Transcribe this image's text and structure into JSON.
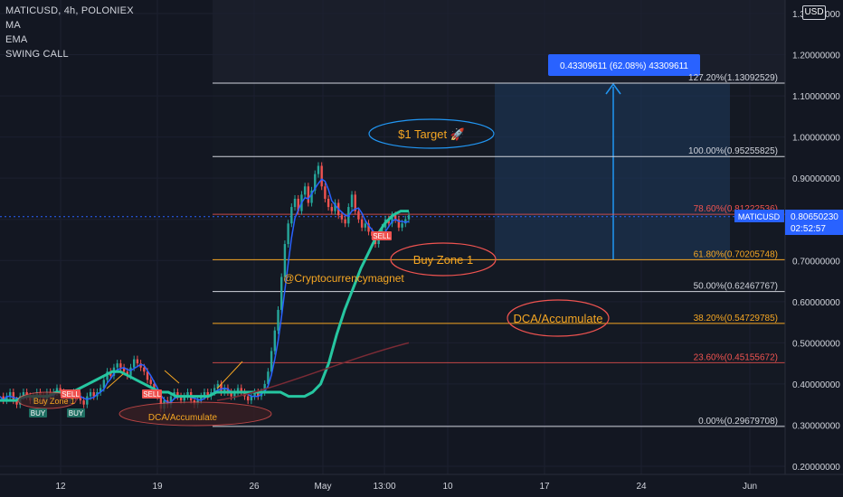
{
  "header": {
    "symbol_line": "MATICUSD, 4h, POLONIEX",
    "indicators": [
      "MA",
      "EMA",
      "SWING CALL"
    ],
    "currency_badge": "USD"
  },
  "colors": {
    "background": "#131722",
    "grid": "#1c2030",
    "axis_text": "#d1d4dc",
    "up_candle": "#26a69a",
    "down_candle": "#ef5350",
    "ma_line": "#26c6a0",
    "ema_line": "#2962ff",
    "fib_white": "#d1d4dc",
    "fib_orange": "#f5a623",
    "fib_red": "#ef5350",
    "target_box": "#1e3a5f",
    "target_arrow": "#2196f3",
    "ellipse_red": "#ef5350",
    "ellipse_blue": "#2196f3",
    "price_label_bg": "#2962ff"
  },
  "chart_data": {
    "type": "line",
    "title": "MATICUSD, 4h, POLONIEX",
    "x_ticks": [
      "12",
      "19",
      "26",
      "May",
      "13:00",
      "10",
      "17",
      "24",
      "Jun"
    ],
    "y_ticks": [
      "1.30000000",
      "1.20000000",
      "1.10000000",
      "1.00000000",
      "0.90000000",
      "0.80000000",
      "0.70000000",
      "0.60000000",
      "0.50000000",
      "0.40000000",
      "0.30000000",
      "0.20000000"
    ],
    "y_tick_values": [
      1.3,
      1.2,
      1.1,
      1.0,
      0.9,
      0.8,
      0.7,
      0.6,
      0.5,
      0.4,
      0.3,
      0.2
    ],
    "ylim": [
      0.18,
      1.32
    ],
    "last_price": {
      "symbol": "MATICUSD",
      "value": "0.80650230",
      "countdown": "02:52:57"
    },
    "fib_levels": [
      {
        "label": "127.20%(1.13092529)",
        "value": 1.13092529,
        "color": "white"
      },
      {
        "label": "100.00%(0.95255825)",
        "value": 0.95255825,
        "color": "white"
      },
      {
        "label": "78.60%(0.81222536)",
        "value": 0.81222536,
        "color": "red"
      },
      {
        "label": "61.80%(0.70205748)",
        "value": 0.70205748,
        "color": "orange"
      },
      {
        "label": "50.00%(0.62467767)",
        "value": 0.62467767,
        "color": "white"
      },
      {
        "label": "38.20%(0.54729785)",
        "value": 0.54729785,
        "color": "orange"
      },
      {
        "label": "23.60%(0.45155672)",
        "value": 0.45155672,
        "color": "red"
      },
      {
        "label": "0.00%(0.29679708)",
        "value": 0.29679708,
        "color": "white"
      }
    ],
    "measure_label": "0.43309611 (62.08%) 43309611",
    "annotations": [
      "$1 Target 🚀",
      "Buy Zone 1",
      "DCA/Accumulate",
      "@Cryptocurrencymagnet"
    ],
    "signals": [
      "SELL",
      "BUY",
      "Buy Zone 1",
      "DCA/Accumulate"
    ],
    "price_series": [
      0.37,
      0.36,
      0.37,
      0.38,
      0.36,
      0.35,
      0.37,
      0.38,
      0.37,
      0.36,
      0.37,
      0.38,
      0.37,
      0.36,
      0.38,
      0.37,
      0.38,
      0.39,
      0.38,
      0.37,
      0.36,
      0.37,
      0.38,
      0.37,
      0.36,
      0.35,
      0.37,
      0.38,
      0.37,
      0.38,
      0.39,
      0.41,
      0.43,
      0.42,
      0.44,
      0.45,
      0.44,
      0.43,
      0.42,
      0.44,
      0.46,
      0.45,
      0.44,
      0.43,
      0.41,
      0.4,
      0.38,
      0.37,
      0.34,
      0.36,
      0.35,
      0.37,
      0.38,
      0.37,
      0.36,
      0.37,
      0.38,
      0.36,
      0.35,
      0.36,
      0.37,
      0.38,
      0.37,
      0.38,
      0.39,
      0.4,
      0.38,
      0.39,
      0.38,
      0.37,
      0.38,
      0.39,
      0.38,
      0.37,
      0.36,
      0.37,
      0.38,
      0.37,
      0.38,
      0.4,
      0.43,
      0.48,
      0.53,
      0.58,
      0.66,
      0.74,
      0.79,
      0.83,
      0.85,
      0.82,
      0.86,
      0.88,
      0.84,
      0.87,
      0.91,
      0.93,
      0.88,
      0.85,
      0.83,
      0.82,
      0.84,
      0.81,
      0.8,
      0.79,
      0.83,
      0.86,
      0.82,
      0.8,
      0.78,
      0.79,
      0.77,
      0.76,
      0.74,
      0.76,
      0.78,
      0.8,
      0.79,
      0.81,
      0.8,
      0.78,
      0.79,
      0.8,
      0.81
    ],
    "ma_series": [
      0.36,
      0.36,
      0.36,
      0.37,
      0.37,
      0.37,
      0.37,
      0.38,
      0.38,
      0.38,
      0.39,
      0.4,
      0.41,
      0.42,
      0.43,
      0.43,
      0.42,
      0.41,
      0.4,
      0.39,
      0.38,
      0.38,
      0.37,
      0.37,
      0.37,
      0.37,
      0.37,
      0.38,
      0.38,
      0.38,
      0.38,
      0.38,
      0.38,
      0.38,
      0.38,
      0.38,
      0.37,
      0.37,
      0.37,
      0.38,
      0.4,
      0.45,
      0.52,
      0.58,
      0.63,
      0.68,
      0.72,
      0.76,
      0.79,
      0.81,
      0.82,
      0.82
    ]
  }
}
